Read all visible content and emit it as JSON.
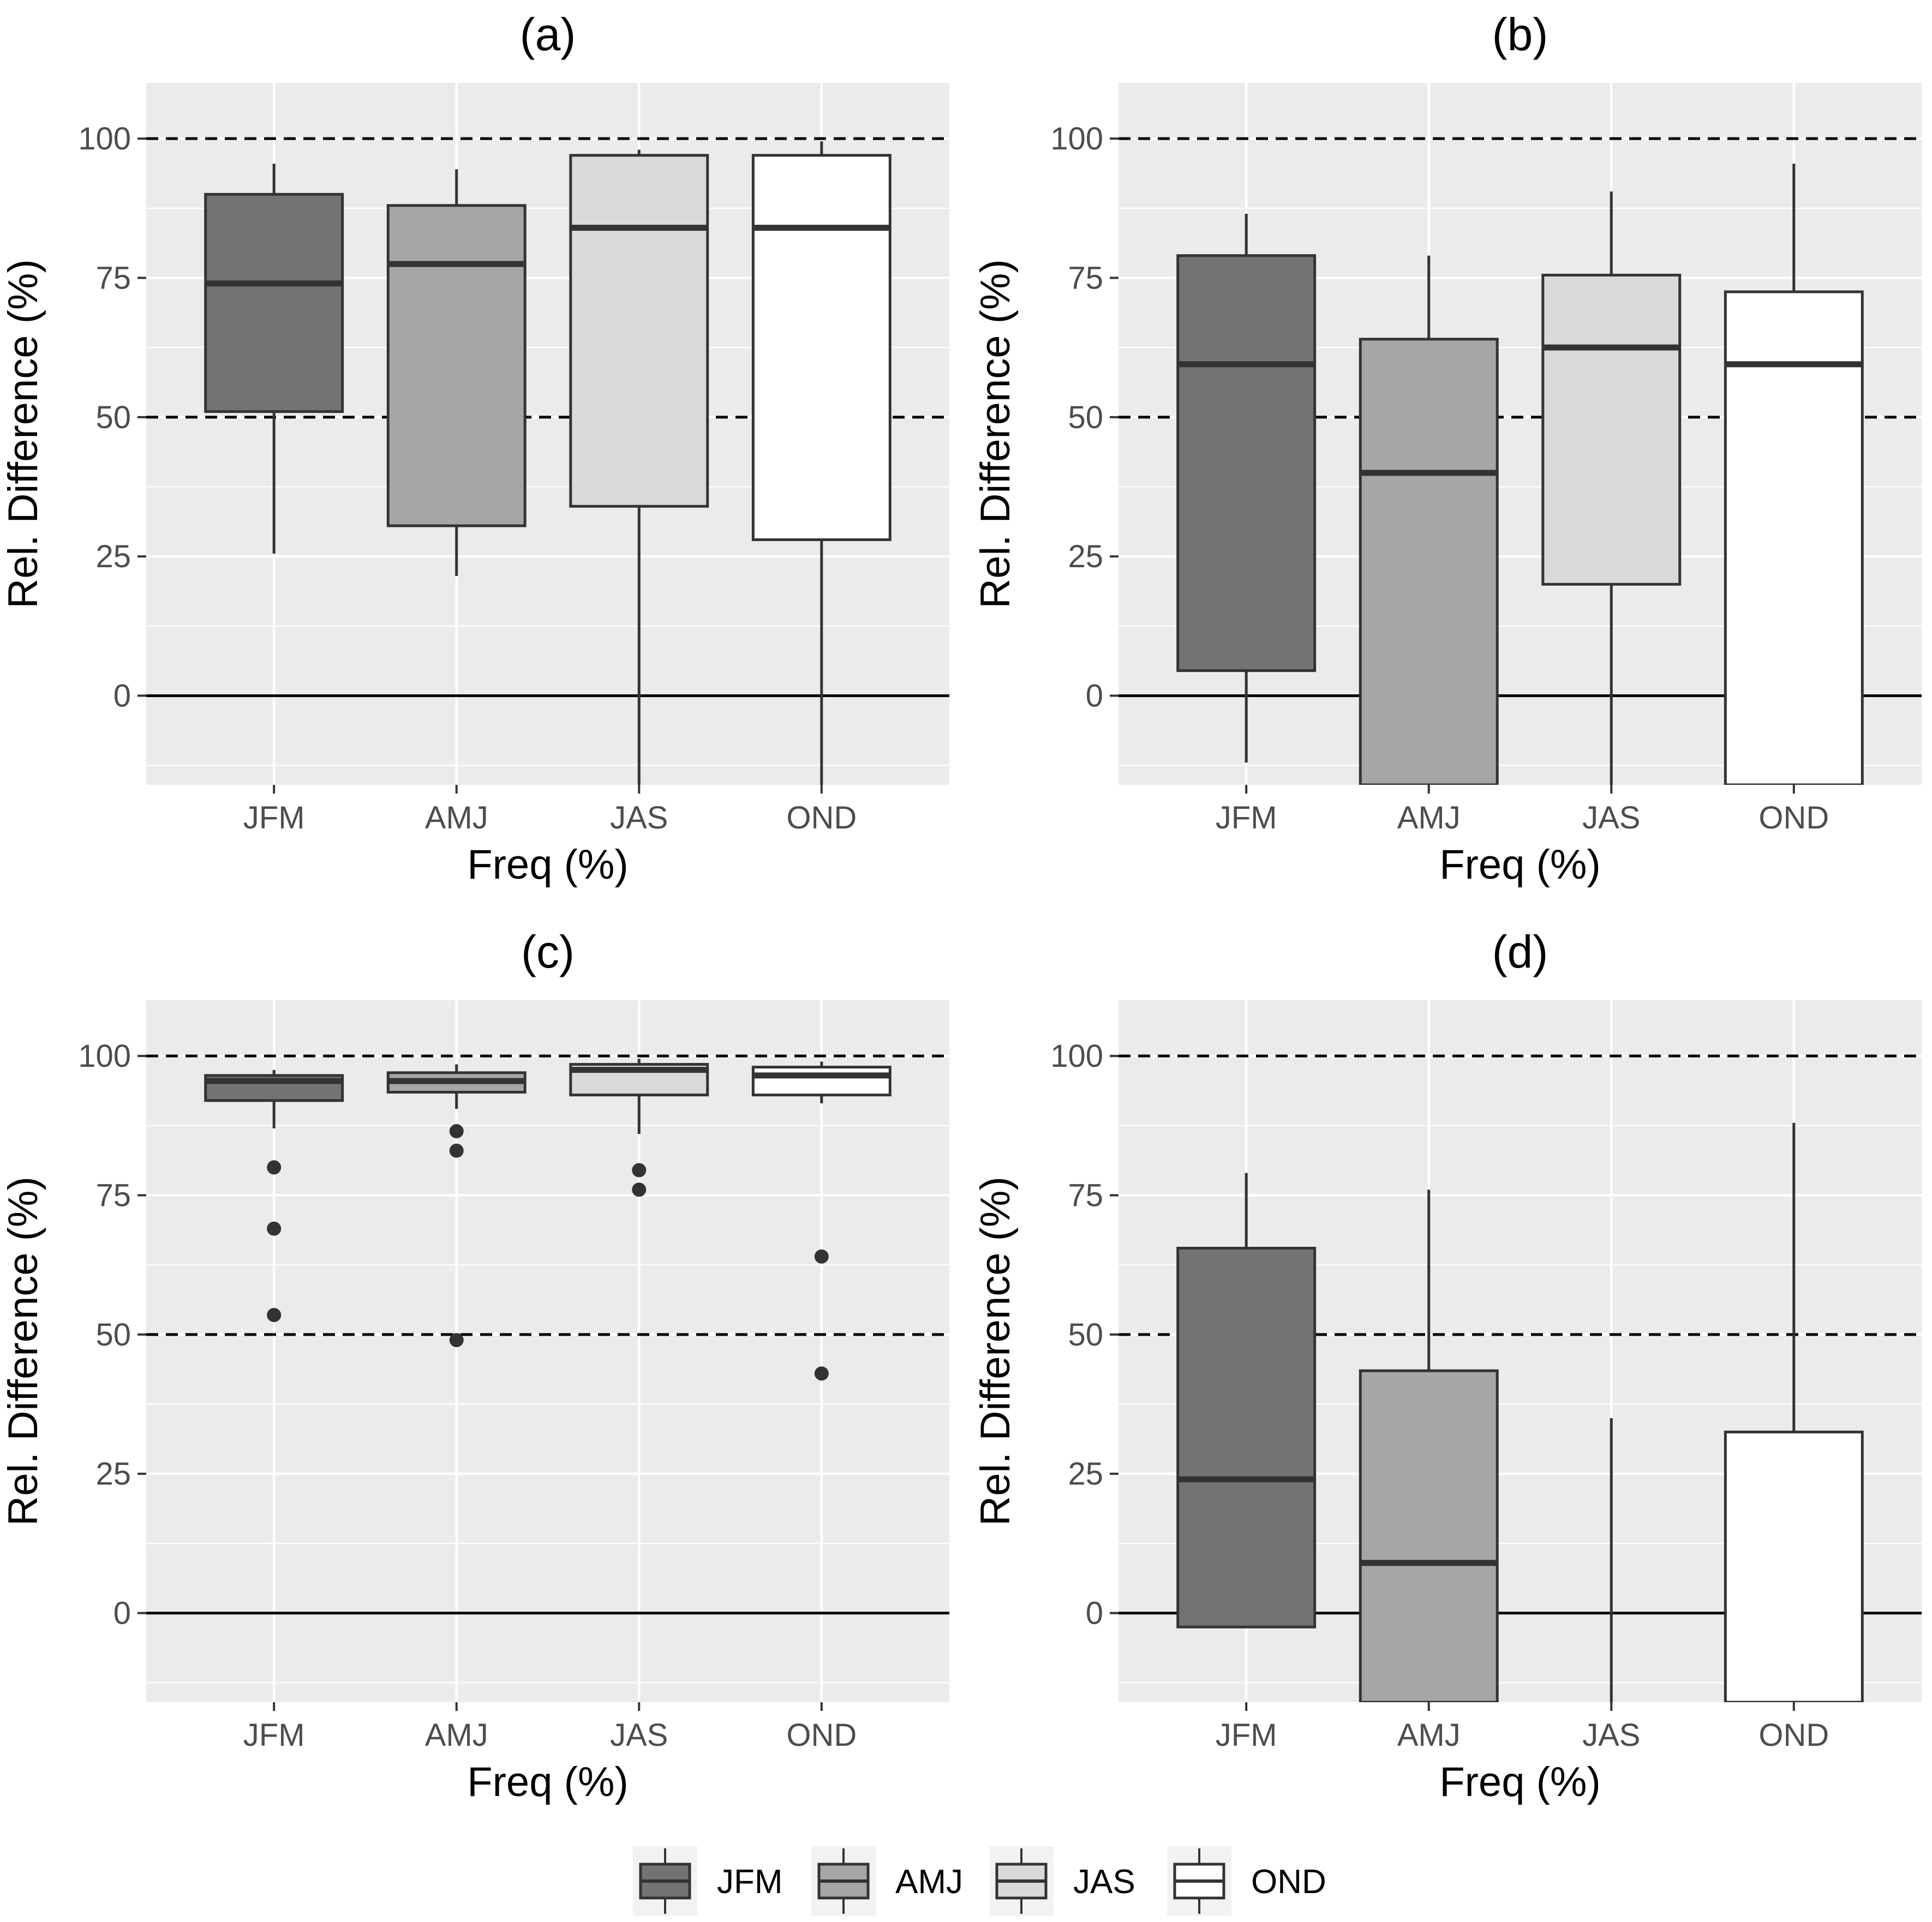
{
  "chart_data": [
    {
      "type": "boxplot",
      "title": "(a)",
      "xlabel": "Freq (%)",
      "ylabel": "Rel. Difference (%)",
      "ylim": [
        -16,
        110
      ],
      "yticks": [
        0,
        25,
        50,
        75,
        100
      ],
      "reference_lines": [
        {
          "value": 100,
          "style": "dashed"
        },
        {
          "value": 50,
          "style": "dashed"
        },
        {
          "value": 0,
          "style": "solid"
        }
      ],
      "categories": [
        "JFM",
        "AMJ",
        "JAS",
        "OND"
      ],
      "boxes": [
        {
          "category": "JFM",
          "whisker_low": 25.5,
          "q1": 51,
          "median": 74,
          "q3": 90,
          "whisker_high": 95.5,
          "outliers": []
        },
        {
          "category": "AMJ",
          "whisker_low": 21.5,
          "q1": 30.5,
          "median": 77.5,
          "q3": 88,
          "whisker_high": 94.5,
          "outliers": []
        },
        {
          "category": "JAS",
          "whisker_low": -16,
          "q1": 34,
          "median": 84,
          "q3": 97,
          "whisker_high": 98,
          "outliers": []
        },
        {
          "category": "OND",
          "whisker_low": -16,
          "q1": 28,
          "median": 84,
          "q3": 97,
          "whisker_high": 99.5,
          "outliers": []
        }
      ]
    },
    {
      "type": "boxplot",
      "title": "(b)",
      "xlabel": "Freq (%)",
      "ylabel": "Rel. Difference (%)",
      "ylim": [
        -16,
        110
      ],
      "yticks": [
        0,
        25,
        50,
        75,
        100
      ],
      "reference_lines": [
        {
          "value": 100,
          "style": "dashed"
        },
        {
          "value": 50,
          "style": "dashed"
        },
        {
          "value": 0,
          "style": "solid"
        }
      ],
      "categories": [
        "JFM",
        "AMJ",
        "JAS",
        "OND"
      ],
      "boxes": [
        {
          "category": "JFM",
          "whisker_low": -12,
          "q1": 4.5,
          "median": 59.5,
          "q3": 79,
          "whisker_high": 86.5,
          "outliers": []
        },
        {
          "category": "AMJ",
          "whisker_low": -16,
          "q1": -16,
          "median": 40,
          "q3": 64,
          "whisker_high": 79,
          "outliers": []
        },
        {
          "category": "JAS",
          "whisker_low": -16,
          "q1": 20,
          "median": 62.5,
          "q3": 75.5,
          "whisker_high": 90.5,
          "outliers": []
        },
        {
          "category": "OND",
          "whisker_low": -16,
          "q1": -16,
          "median": 59.5,
          "q3": 72.5,
          "whisker_high": 95.5,
          "outliers": []
        }
      ]
    },
    {
      "type": "boxplot",
      "title": "(c)",
      "xlabel": "Freq (%)",
      "ylabel": "Rel. Difference (%)",
      "ylim": [
        -16,
        110
      ],
      "yticks": [
        0,
        25,
        50,
        75,
        100
      ],
      "reference_lines": [
        {
          "value": 100,
          "style": "dashed"
        },
        {
          "value": 50,
          "style": "dashed"
        },
        {
          "value": 0,
          "style": "solid"
        }
      ],
      "categories": [
        "JFM",
        "AMJ",
        "JAS",
        "OND"
      ],
      "boxes": [
        {
          "category": "JFM",
          "whisker_low": 87,
          "q1": 92,
          "median": 95.5,
          "q3": 96.5,
          "whisker_high": 97.5,
          "outliers": [
            80,
            69,
            53.5
          ]
        },
        {
          "category": "AMJ",
          "whisker_low": 90.5,
          "q1": 93.5,
          "median": 95.5,
          "q3": 97,
          "whisker_high": 98.5,
          "outliers": [
            86.5,
            83,
            49
          ]
        },
        {
          "category": "JAS",
          "whisker_low": 86,
          "q1": 93,
          "median": 97.5,
          "q3": 98.5,
          "whisker_high": 99.5,
          "outliers": [
            79.5,
            76
          ]
        },
        {
          "category": "OND",
          "whisker_low": 91.5,
          "q1": 93,
          "median": 96.5,
          "q3": 98,
          "whisker_high": 99,
          "outliers": [
            64,
            43
          ]
        }
      ]
    },
    {
      "type": "boxplot",
      "title": "(d)",
      "xlabel": "Freq (%)",
      "ylabel": "Rel. Difference (%)",
      "ylim": [
        -16,
        110
      ],
      "yticks": [
        0,
        25,
        50,
        75,
        100
      ],
      "reference_lines": [
        {
          "value": 100,
          "style": "dashed"
        },
        {
          "value": 50,
          "style": "dashed"
        },
        {
          "value": 0,
          "style": "solid"
        }
      ],
      "categories": [
        "JFM",
        "AMJ",
        "JAS",
        "OND"
      ],
      "boxes": [
        {
          "category": "JFM",
          "whisker_low": -2.5,
          "q1": -2.5,
          "median": 24,
          "q3": 65.5,
          "whisker_high": 79,
          "outliers": []
        },
        {
          "category": "AMJ",
          "whisker_low": -16,
          "q1": -16,
          "median": 9,
          "q3": 43.5,
          "whisker_high": 76,
          "outliers": []
        },
        {
          "category": "JAS",
          "whisker_low": -16,
          "q1": null,
          "median": null,
          "q3": null,
          "whisker_high": 35,
          "outliers": []
        },
        {
          "category": "OND",
          "whisker_low": -16,
          "q1": -16,
          "median": null,
          "q3": 32.5,
          "whisker_high": 88,
          "outliers": []
        }
      ]
    }
  ],
  "legend": {
    "placement": "bottom",
    "items": [
      {
        "label": "JFM",
        "color": "#737373"
      },
      {
        "label": "AMJ",
        "color": "#a6a6a6"
      },
      {
        "label": "JAS",
        "color": "#d9d9d9"
      },
      {
        "label": "OND",
        "color": "#ffffff"
      }
    ]
  },
  "colors": {
    "panel_background": "#ebebeb",
    "grid": "#ffffff",
    "box_outline": "#333333",
    "reference_line": "#000000"
  }
}
